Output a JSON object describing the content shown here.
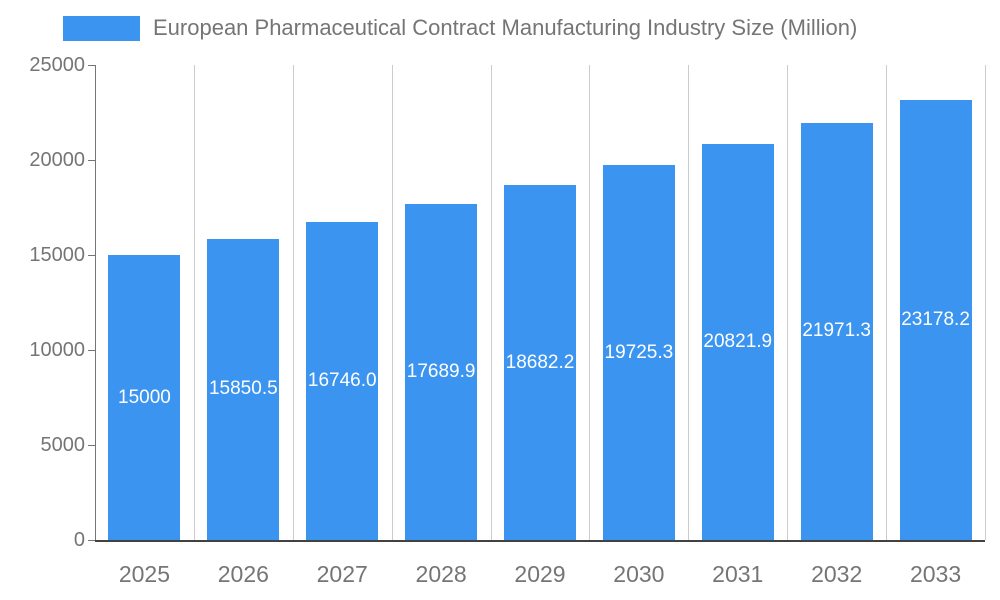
{
  "legend": {
    "label": "European Pharmaceutical Contract Manufacturing Industry Size (Million)"
  },
  "colors": {
    "bar": "#3b95f0",
    "axis_text": "#757575",
    "grid": "#cccccc",
    "axis_line_bottom": "#424242",
    "axis_line_left": "#757575",
    "bar_label": "#ffffff"
  },
  "chart_data": {
    "type": "bar",
    "title": "European Pharmaceutical Contract Manufacturing Industry Size (Million)",
    "categories": [
      "2025",
      "2026",
      "2027",
      "2028",
      "2029",
      "2030",
      "2031",
      "2032",
      "2033"
    ],
    "values": [
      15000,
      15850.5,
      16746.0,
      17689.9,
      18682.2,
      19725.3,
      20821.9,
      21971.3,
      23178.2
    ],
    "value_labels": [
      "15000",
      "15850.5",
      "16746.0",
      "17689.9",
      "18682.2",
      "19725.3",
      "20821.9",
      "21971.3",
      "23178.2"
    ],
    "xlabel": "",
    "ylabel": "",
    "ylim": [
      0,
      25000
    ],
    "yticks": [
      0,
      5000,
      10000,
      15000,
      20000,
      25000
    ],
    "grid": "vertical",
    "legend_position": "top-left"
  }
}
